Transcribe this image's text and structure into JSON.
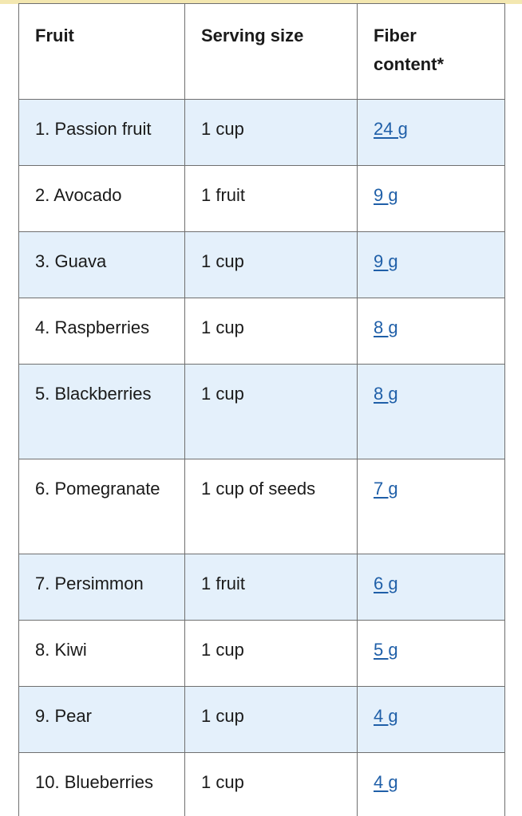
{
  "table": {
    "headers": [
      "Fruit",
      "Serving size",
      "Fiber content*"
    ],
    "rows": [
      {
        "fruit": "1. Passion fruit",
        "serving": "1 cup",
        "fiber": "24 g"
      },
      {
        "fruit": "2. Avocado",
        "serving": "1 fruit",
        "fiber": "9 g"
      },
      {
        "fruit": "3. Guava",
        "serving": "1 cup",
        "fiber": "9 g"
      },
      {
        "fruit": "4. Raspberries",
        "serving": "1 cup",
        "fiber": "8 g"
      },
      {
        "fruit": "5. Blackberries",
        "serving": "1 cup",
        "fiber": "8 g"
      },
      {
        "fruit": "6. Pomegranate",
        "serving": "1 cup of seeds",
        "fiber": "7 g"
      },
      {
        "fruit": "7. Persimmon",
        "serving": "1 fruit",
        "fiber": "6 g"
      },
      {
        "fruit": "8. Kiwi",
        "serving": "1 cup",
        "fiber": "5 g"
      },
      {
        "fruit": "9. Pear",
        "serving": "1 cup",
        "fiber": "4 g"
      },
      {
        "fruit": "10. Blueberries",
        "serving": "1 cup",
        "fiber": "4 g"
      }
    ]
  },
  "colors": {
    "row_shade": "#e4f0fb",
    "link": "#1f5fa8",
    "border": "#6f6f6f",
    "top_accent": "#f3e7b0"
  }
}
